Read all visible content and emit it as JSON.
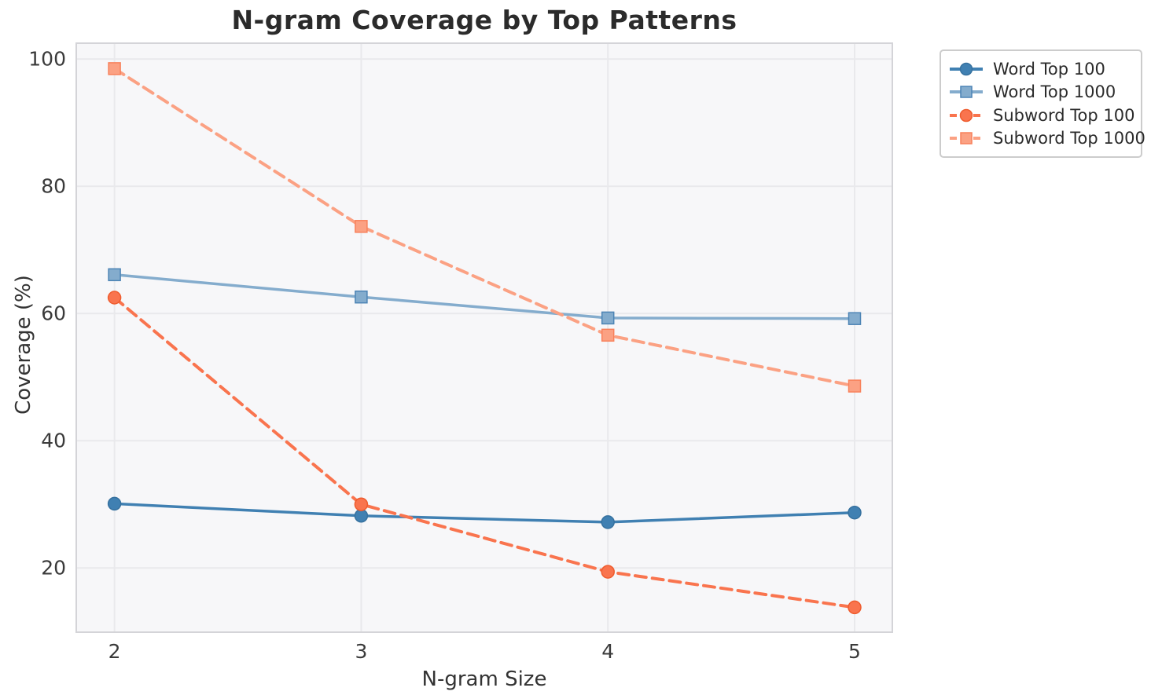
{
  "chart_data": {
    "type": "line",
    "title": "N-gram Coverage by Top Patterns",
    "xlabel": "N-gram Size",
    "ylabel": "Coverage (%)",
    "x": [
      2,
      3,
      4,
      5
    ],
    "xticks": [
      2,
      3,
      4,
      5
    ],
    "yticks": [
      20,
      40,
      60,
      80,
      100
    ],
    "xlim": [
      1.845,
      5.153
    ],
    "ylim": [
      9.9,
      102.5
    ],
    "grid": true,
    "legend_position": "outside upper right",
    "series": [
      {
        "name": "Word Top 100",
        "values": [
          30.1,
          28.2,
          27.2,
          28.7
        ],
        "color": "#4080b2",
        "marker_edge": "#36719f",
        "dash": "",
        "marker": "circle"
      },
      {
        "name": "Word Top 1000",
        "values": [
          66.1,
          62.6,
          59.3,
          59.2
        ],
        "color": "#84accd",
        "marker_edge": "#4d84b5",
        "dash": "",
        "marker": "square"
      },
      {
        "name": "Subword Top 100",
        "values": [
          62.5,
          30.0,
          19.4,
          13.8
        ],
        "color": "#f9744e",
        "marker_edge": "#ef5c2e",
        "dash": "14 8",
        "marker": "circle"
      },
      {
        "name": "Subword Top 1000",
        "values": [
          98.5,
          73.7,
          56.6,
          48.6
        ],
        "color": "#fba183",
        "marker_edge": "#f8815b",
        "dash": "14 8",
        "marker": "square"
      }
    ],
    "style": {
      "plot_bg": "#f7f7f9",
      "grid_color": "#e9e9ec",
      "spine_color": "#d4d4d8",
      "text_color": "#3a3a3a",
      "title_color": "#2b2b2b",
      "legend_border": "#cccccc",
      "legend_bg": "#ffffff"
    }
  }
}
